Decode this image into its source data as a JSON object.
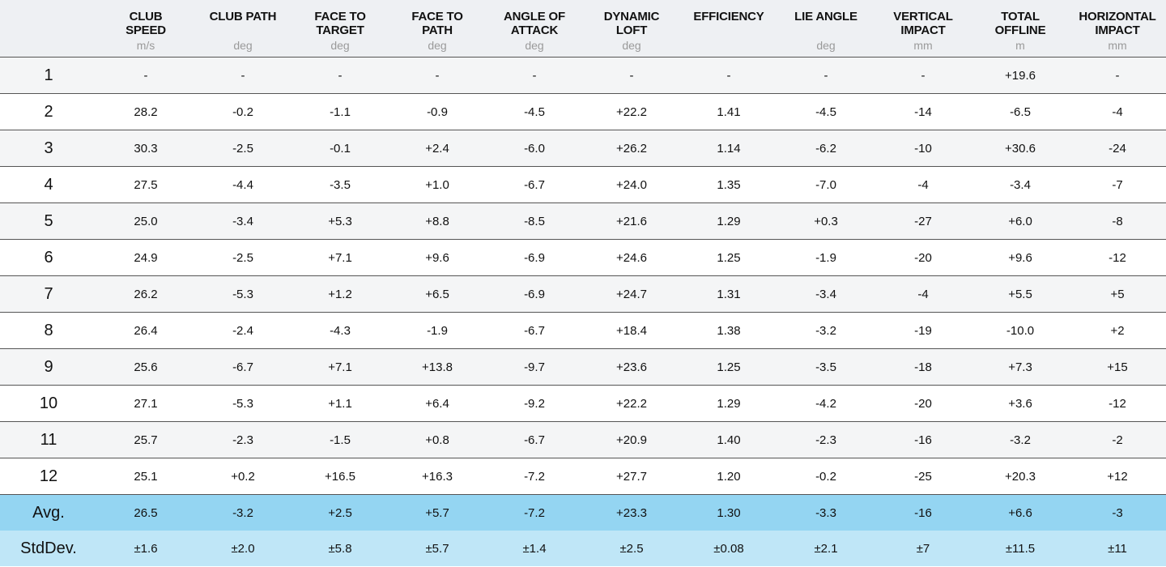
{
  "table": {
    "columns": [
      {
        "lines": [
          "CLUB",
          "SPEED"
        ],
        "unit": "m/s"
      },
      {
        "lines": [
          "CLUB PATH"
        ],
        "unit": "deg"
      },
      {
        "lines": [
          "FACE TO",
          "TARGET"
        ],
        "unit": "deg"
      },
      {
        "lines": [
          "FACE TO",
          "PATH"
        ],
        "unit": "deg"
      },
      {
        "lines": [
          "ANGLE OF",
          "ATTACK"
        ],
        "unit": "deg"
      },
      {
        "lines": [
          "DYNAMIC",
          "LOFT"
        ],
        "unit": "deg"
      },
      {
        "lines": [
          "EFFICIENCY"
        ]
      },
      {
        "lines": [
          "LIE ANGLE"
        ],
        "unit": "deg"
      },
      {
        "lines": [
          "VERTICAL",
          "IMPACT"
        ],
        "unit": "mm"
      },
      {
        "lines": [
          "TOTAL",
          "OFFLINE"
        ],
        "unit": "m"
      },
      {
        "lines": [
          "HORIZONTAL",
          "IMPACT"
        ],
        "unit": "mm"
      }
    ],
    "rows": [
      {
        "label": "1",
        "cells": [
          "-",
          "-",
          "-",
          "-",
          "-",
          "-",
          "-",
          "-",
          "-",
          "+19.6",
          "-"
        ]
      },
      {
        "label": "2",
        "cells": [
          "28.2",
          "-0.2",
          "-1.1",
          "-0.9",
          "-4.5",
          "+22.2",
          "1.41",
          "-4.5",
          "-14",
          "-6.5",
          "-4"
        ]
      },
      {
        "label": "3",
        "cells": [
          "30.3",
          "-2.5",
          "-0.1",
          "+2.4",
          "-6.0",
          "+26.2",
          "1.14",
          "-6.2",
          "-10",
          "+30.6",
          "-24"
        ]
      },
      {
        "label": "4",
        "cells": [
          "27.5",
          "-4.4",
          "-3.5",
          "+1.0",
          "-6.7",
          "+24.0",
          "1.35",
          "-7.0",
          "-4",
          "-3.4",
          "-7"
        ]
      },
      {
        "label": "5",
        "cells": [
          "25.0",
          "-3.4",
          "+5.3",
          "+8.8",
          "-8.5",
          "+21.6",
          "1.29",
          "+0.3",
          "-27",
          "+6.0",
          "-8"
        ]
      },
      {
        "label": "6",
        "cells": [
          "24.9",
          "-2.5",
          "+7.1",
          "+9.6",
          "-6.9",
          "+24.6",
          "1.25",
          "-1.9",
          "-20",
          "+9.6",
          "-12"
        ]
      },
      {
        "label": "7",
        "cells": [
          "26.2",
          "-5.3",
          "+1.2",
          "+6.5",
          "-6.9",
          "+24.7",
          "1.31",
          "-3.4",
          "-4",
          "+5.5",
          "+5"
        ]
      },
      {
        "label": "8",
        "cells": [
          "26.4",
          "-2.4",
          "-4.3",
          "-1.9",
          "-6.7",
          "+18.4",
          "1.38",
          "-3.2",
          "-19",
          "-10.0",
          "+2"
        ]
      },
      {
        "label": "9",
        "cells": [
          "25.6",
          "-6.7",
          "+7.1",
          "+13.8",
          "-9.7",
          "+23.6",
          "1.25",
          "-3.5",
          "-18",
          "+7.3",
          "+15"
        ]
      },
      {
        "label": "10",
        "cells": [
          "27.1",
          "-5.3",
          "+1.1",
          "+6.4",
          "-9.2",
          "+22.2",
          "1.29",
          "-4.2",
          "-20",
          "+3.6",
          "-12"
        ]
      },
      {
        "label": "11",
        "cells": [
          "25.7",
          "-2.3",
          "-1.5",
          "+0.8",
          "-6.7",
          "+20.9",
          "1.40",
          "-2.3",
          "-16",
          "-3.2",
          "-2"
        ]
      },
      {
        "label": "12",
        "cells": [
          "25.1",
          "+0.2",
          "+16.5",
          "+16.3",
          "-7.2",
          "+27.7",
          "1.20",
          "-0.2",
          "-25",
          "+20.3",
          "+12"
        ]
      }
    ],
    "summary": [
      {
        "label": "Avg.",
        "cells": [
          "26.5",
          "-3.2",
          "+2.5",
          "+5.7",
          "-7.2",
          "+23.3",
          "1.30",
          "-3.3",
          "-16",
          "+6.6",
          "-3"
        ]
      },
      {
        "label": "StdDev.",
        "cells": [
          "±1.6",
          "±2.0",
          "±5.8",
          "±5.7",
          "±1.4",
          "±2.5",
          "±0.08",
          "±2.1",
          "±7",
          "±11.5",
          "±11"
        ]
      }
    ]
  }
}
